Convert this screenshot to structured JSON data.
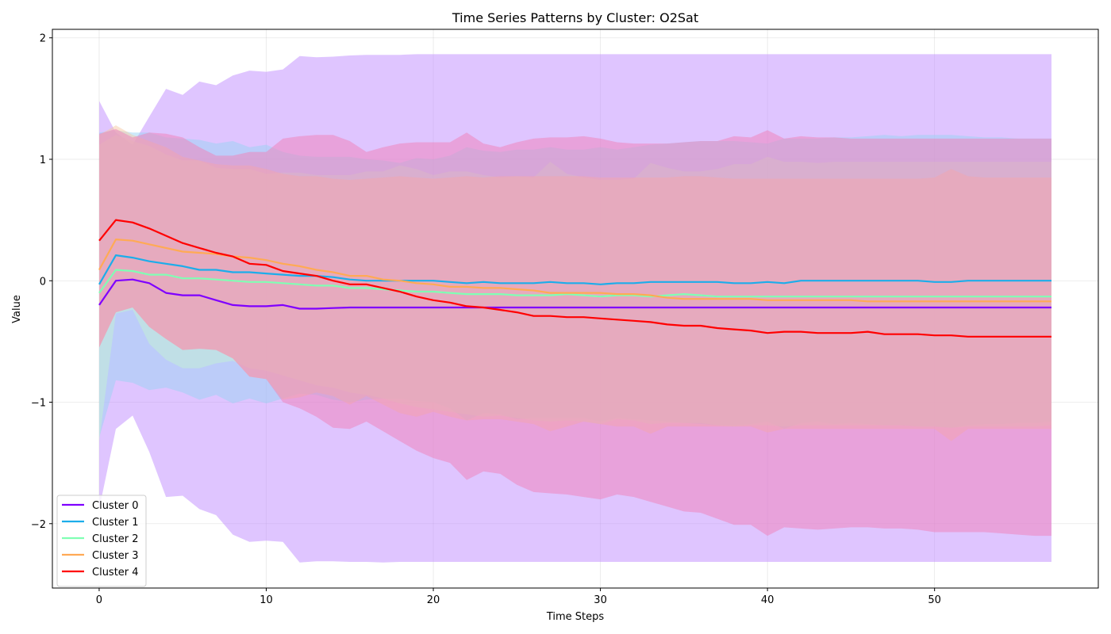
{
  "chart_data": {
    "type": "line",
    "title": "Time Series Patterns by Cluster: O2Sat",
    "xlabel": "Time Steps",
    "ylabel": "Value",
    "xlim": [
      -2.8,
      59.8
    ],
    "ylim": [
      -2.53,
      2.07
    ],
    "xticks": [
      0,
      10,
      20,
      30,
      40,
      50
    ],
    "yticks": [
      -2,
      -1,
      0,
      1,
      2
    ],
    "grid": true,
    "legend_position": "lower-left",
    "x": [
      0,
      1,
      2,
      3,
      4,
      5,
      6,
      7,
      8,
      9,
      10,
      11,
      12,
      13,
      14,
      15,
      16,
      17,
      18,
      19,
      20,
      21,
      22,
      23,
      24,
      25,
      26,
      27,
      28,
      29,
      30,
      31,
      32,
      33,
      34,
      35,
      36,
      37,
      38,
      39,
      40,
      41,
      42,
      43,
      44,
      45,
      46,
      47,
      48,
      49,
      50,
      51,
      52,
      53,
      54,
      55,
      56,
      57
    ],
    "series": [
      {
        "name": "Cluster 0",
        "color": "#7f00ff",
        "fill": "#c08bff",
        "values": [
          -0.2,
          0.0,
          0.01,
          -0.02,
          -0.1,
          -0.12,
          -0.12,
          -0.16,
          -0.2,
          -0.21,
          -0.21,
          -0.2,
          -0.23,
          -0.23,
          -0.225,
          -0.22,
          -0.22,
          -0.22,
          -0.22,
          -0.22,
          -0.22,
          -0.22,
          -0.22,
          -0.22,
          -0.22,
          -0.22,
          -0.22,
          -0.22,
          -0.22,
          -0.22,
          -0.22,
          -0.22,
          -0.22,
          -0.22,
          -0.22,
          -0.22,
          -0.22,
          -0.22,
          -0.22,
          -0.22,
          -0.22,
          -0.22,
          -0.22,
          -0.22,
          -0.22,
          -0.22,
          -0.22,
          -0.22,
          -0.22,
          -0.22,
          -0.22,
          -0.22,
          -0.22,
          -0.22,
          -0.22,
          -0.22,
          -0.22,
          -0.22
        ],
        "upper": [
          1.48,
          1.22,
          1.12,
          1.35,
          1.58,
          1.53,
          1.64,
          1.61,
          1.69,
          1.73,
          1.72,
          1.74,
          1.85,
          1.84,
          1.845,
          1.855,
          1.86,
          1.86,
          1.86,
          1.865,
          1.865,
          1.865,
          1.865,
          1.865,
          1.865,
          1.865,
          1.865,
          1.865,
          1.865,
          1.865,
          1.865,
          1.865,
          1.865,
          1.865,
          1.865,
          1.865,
          1.865,
          1.865,
          1.865,
          1.865,
          1.865,
          1.865,
          1.865,
          1.865,
          1.865,
          1.865,
          1.865,
          1.865,
          1.865,
          1.865,
          1.865,
          1.865,
          1.865,
          1.865,
          1.865,
          1.865,
          1.865,
          1.865
        ],
        "lower": [
          -1.88,
          -1.22,
          -1.11,
          -1.41,
          -1.78,
          -1.77,
          -1.88,
          -1.93,
          -2.09,
          -2.15,
          -2.14,
          -2.15,
          -2.32,
          -2.31,
          -2.31,
          -2.315,
          -2.315,
          -2.32,
          -2.315,
          -2.315,
          -2.315,
          -2.315,
          -2.315,
          -2.315,
          -2.315,
          -2.315,
          -2.315,
          -2.315,
          -2.315,
          -2.315,
          -2.315,
          -2.315,
          -2.315,
          -2.315,
          -2.315,
          -2.315,
          -2.315,
          -2.315,
          -2.315,
          -2.315,
          -2.315,
          -2.315,
          -2.315,
          -2.315,
          -2.315,
          -2.315,
          -2.315,
          -2.315,
          -2.315,
          -2.315,
          -2.315,
          -2.315,
          -2.315,
          -2.315,
          -2.315,
          -2.315,
          -2.315,
          -2.315
        ]
      },
      {
        "name": "Cluster 1",
        "color": "#1cadea",
        "fill": "#9ad3f3",
        "values": [
          -0.03,
          0.21,
          0.19,
          0.16,
          0.14,
          0.12,
          0.09,
          0.09,
          0.07,
          0.07,
          0.06,
          0.05,
          0.04,
          0.04,
          0.03,
          0.01,
          0.0,
          0.0,
          0.0,
          0.0,
          0.0,
          -0.01,
          -0.02,
          -0.01,
          -0.02,
          -0.02,
          -0.02,
          -0.01,
          -0.02,
          -0.02,
          -0.03,
          -0.02,
          -0.02,
          -0.01,
          -0.01,
          -0.01,
          -0.01,
          -0.01,
          -0.02,
          -0.02,
          -0.01,
          -0.02,
          0.0,
          0.0,
          0.0,
          0.0,
          0.0,
          0.0,
          0.0,
          0.0,
          -0.01,
          -0.01,
          0.0,
          0.0,
          0.0,
          0.0,
          0.0,
          0.0
        ],
        "upper": [
          1.22,
          1.24,
          1.22,
          1.22,
          1.18,
          1.17,
          1.16,
          1.13,
          1.15,
          1.1,
          1.12,
          1.06,
          1.03,
          1.02,
          1.02,
          1.02,
          1.0,
          0.99,
          0.97,
          1.01,
          1.0,
          1.03,
          1.1,
          1.07,
          1.06,
          1.08,
          1.08,
          1.1,
          1.08,
          1.08,
          1.1,
          1.08,
          1.1,
          1.12,
          1.13,
          1.14,
          1.15,
          1.15,
          1.15,
          1.14,
          1.13,
          1.17,
          1.17,
          1.17,
          1.18,
          1.18,
          1.19,
          1.2,
          1.19,
          1.2,
          1.2,
          1.2,
          1.19,
          1.18,
          1.18,
          1.17,
          1.17,
          1.17
        ],
        "lower": [
          -1.29,
          -0.82,
          -0.84,
          -0.9,
          -0.88,
          -0.92,
          -0.98,
          -0.94,
          -1.01,
          -0.97,
          -1.01,
          -0.97,
          -0.93,
          -0.94,
          -0.98,
          -1.0,
          -0.98,
          -0.97,
          -0.97,
          -0.99,
          -1.0,
          -1.05,
          -1.15,
          -1.09,
          -1.1,
          -1.14,
          -1.13,
          -1.13,
          -1.13,
          -1.13,
          -1.16,
          -1.13,
          -1.14,
          -1.15,
          -1.16,
          -1.17,
          -1.18,
          -1.19,
          -1.19,
          -1.18,
          -1.16,
          -1.22,
          -1.17,
          -1.16,
          -1.18,
          -1.17,
          -1.18,
          -1.19,
          -1.19,
          -1.2,
          -1.2,
          -1.21,
          -1.19,
          -1.18,
          -1.18,
          -1.17,
          -1.17,
          -1.16
        ]
      },
      {
        "name": "Cluster 2",
        "color": "#80ffb4",
        "fill": "#c4f2d3",
        "values": [
          -0.1,
          0.09,
          0.08,
          0.05,
          0.05,
          0.02,
          0.02,
          0.01,
          0.0,
          -0.01,
          -0.01,
          -0.02,
          -0.03,
          -0.04,
          -0.04,
          -0.06,
          -0.06,
          -0.07,
          -0.08,
          -0.09,
          -0.09,
          -0.1,
          -0.11,
          -0.11,
          -0.11,
          -0.12,
          -0.12,
          -0.12,
          -0.11,
          -0.12,
          -0.13,
          -0.12,
          -0.12,
          -0.13,
          -0.12,
          -0.11,
          -0.12,
          -0.13,
          -0.13,
          -0.13,
          -0.13,
          -0.13,
          -0.13,
          -0.13,
          -0.13,
          -0.13,
          -0.13,
          -0.13,
          -0.13,
          -0.13,
          -0.13,
          -0.13,
          -0.13,
          -0.13,
          -0.13,
          -0.13,
          -0.13,
          -0.13
        ],
        "upper": [
          1.12,
          1.2,
          1.15,
          1.11,
          1.04,
          0.99,
          0.99,
          0.93,
          0.92,
          0.92,
          0.88,
          0.89,
          0.89,
          0.87,
          0.87,
          0.87,
          0.9,
          0.9,
          0.95,
          0.92,
          0.87,
          0.9,
          0.9,
          0.87,
          0.85,
          0.86,
          0.85,
          0.98,
          0.88,
          0.85,
          0.83,
          0.83,
          0.84,
          0.97,
          0.93,
          0.9,
          0.9,
          0.92,
          0.96,
          0.96,
          1.02,
          0.98,
          0.98,
          0.97,
          0.98,
          0.98,
          0.98,
          0.98,
          0.98,
          0.98,
          0.98,
          0.98,
          0.98,
          0.98,
          0.98,
          0.98,
          0.98,
          0.98
        ],
        "lower": [
          -1.32,
          -0.27,
          -0.24,
          -0.52,
          -0.65,
          -0.72,
          -0.72,
          -0.68,
          -0.66,
          -0.72,
          -0.74,
          -0.78,
          -0.82,
          -0.86,
          -0.88,
          -0.92,
          -0.94,
          -0.97,
          -1.01,
          -1.04,
          -1.06,
          -1.08,
          -1.1,
          -1.12,
          -1.11,
          -1.13,
          -1.15,
          -1.16,
          -1.15,
          -1.16,
          -1.18,
          -1.14,
          -1.15,
          -1.18,
          -1.17,
          -1.17,
          -1.17,
          -1.19,
          -1.2,
          -1.19,
          -1.19,
          -1.2,
          -1.19,
          -1.19,
          -1.19,
          -1.19,
          -1.19,
          -1.19,
          -1.19,
          -1.2,
          -1.2,
          -1.21,
          -1.2,
          -1.2,
          -1.2,
          -1.2,
          -1.2,
          -1.19
        ]
      },
      {
        "name": "Cluster 3",
        "color": "#ffaa55",
        "fill": "#f6c9a4",
        "values": [
          0.09,
          0.34,
          0.33,
          0.3,
          0.27,
          0.24,
          0.23,
          0.22,
          0.2,
          0.19,
          0.17,
          0.14,
          0.12,
          0.09,
          0.07,
          0.04,
          0.04,
          0.01,
          0.0,
          -0.02,
          -0.03,
          -0.05,
          -0.05,
          -0.06,
          -0.06,
          -0.07,
          -0.08,
          -0.1,
          -0.1,
          -0.1,
          -0.1,
          -0.11,
          -0.11,
          -0.12,
          -0.14,
          -0.15,
          -0.15,
          -0.15,
          -0.15,
          -0.15,
          -0.16,
          -0.16,
          -0.16,
          -0.16,
          -0.16,
          -0.16,
          -0.17,
          -0.17,
          -0.17,
          -0.17,
          -0.17,
          -0.17,
          -0.17,
          -0.17,
          -0.17,
          -0.17,
          -0.17,
          -0.17
        ],
        "upper": [
          1.2,
          1.28,
          1.2,
          1.15,
          1.1,
          1.02,
          0.99,
          0.96,
          0.95,
          0.95,
          0.92,
          0.88,
          0.86,
          0.86,
          0.84,
          0.83,
          0.84,
          0.85,
          0.86,
          0.85,
          0.84,
          0.85,
          0.86,
          0.85,
          0.86,
          0.86,
          0.86,
          0.86,
          0.86,
          0.86,
          0.85,
          0.85,
          0.85,
          0.85,
          0.85,
          0.86,
          0.86,
          0.85,
          0.84,
          0.84,
          0.84,
          0.84,
          0.84,
          0.84,
          0.84,
          0.84,
          0.84,
          0.84,
          0.84,
          0.84,
          0.85,
          0.92,
          0.86,
          0.85,
          0.85,
          0.85,
          0.85,
          0.85
        ],
        "lower": [
          -0.55,
          -0.26,
          -0.22,
          -0.38,
          -0.48,
          -0.57,
          -0.56,
          -0.57,
          -0.64,
          -0.79,
          -0.81,
          -0.98,
          -0.96,
          -0.92,
          -0.95,
          -1.02,
          -0.95,
          -1.02,
          -1.09,
          -1.12,
          -1.08,
          -1.12,
          -1.15,
          -1.14,
          -1.14,
          -1.16,
          -1.18,
          -1.24,
          -1.2,
          -1.16,
          -1.18,
          -1.2,
          -1.2,
          -1.26,
          -1.2,
          -1.2,
          -1.2,
          -1.2,
          -1.2,
          -1.2,
          -1.25,
          -1.22,
          -1.22,
          -1.22,
          -1.22,
          -1.22,
          -1.22,
          -1.22,
          -1.22,
          -1.22,
          -1.22,
          -1.32,
          -1.22,
          -1.22,
          -1.22,
          -1.22,
          -1.22,
          -1.22
        ]
      },
      {
        "name": "Cluster 4",
        "color": "#ff0000",
        "fill": "#f17fb7",
        "values": [
          0.33,
          0.5,
          0.48,
          0.43,
          0.37,
          0.31,
          0.27,
          0.23,
          0.2,
          0.14,
          0.13,
          0.08,
          0.06,
          0.04,
          0.0,
          -0.03,
          -0.03,
          -0.06,
          -0.09,
          -0.13,
          -0.16,
          -0.18,
          -0.21,
          -0.22,
          -0.24,
          -0.26,
          -0.29,
          -0.29,
          -0.3,
          -0.3,
          -0.31,
          -0.32,
          -0.33,
          -0.34,
          -0.36,
          -0.37,
          -0.37,
          -0.39,
          -0.4,
          -0.41,
          -0.43,
          -0.42,
          -0.42,
          -0.43,
          -0.43,
          -0.43,
          -0.42,
          -0.44,
          -0.44,
          -0.44,
          -0.45,
          -0.45,
          -0.46,
          -0.46,
          -0.46,
          -0.46,
          -0.46,
          -0.46
        ],
        "upper": [
          1.21,
          1.25,
          1.18,
          1.22,
          1.21,
          1.18,
          1.1,
          1.03,
          1.03,
          1.06,
          1.06,
          1.17,
          1.19,
          1.2,
          1.2,
          1.15,
          1.06,
          1.1,
          1.13,
          1.14,
          1.14,
          1.14,
          1.22,
          1.13,
          1.1,
          1.14,
          1.17,
          1.18,
          1.18,
          1.19,
          1.17,
          1.14,
          1.13,
          1.13,
          1.13,
          1.14,
          1.15,
          1.15,
          1.19,
          1.18,
          1.24,
          1.17,
          1.19,
          1.18,
          1.18,
          1.17,
          1.17,
          1.17,
          1.17,
          1.17,
          1.17,
          1.17,
          1.17,
          1.17,
          1.17,
          1.17,
          1.17,
          1.17
        ],
        "lower": [
          -0.55,
          -0.26,
          -0.22,
          -0.38,
          -0.48,
          -0.57,
          -0.56,
          -0.57,
          -0.64,
          -0.79,
          -0.81,
          -1.0,
          -1.05,
          -1.12,
          -1.21,
          -1.22,
          -1.16,
          -1.24,
          -1.32,
          -1.4,
          -1.46,
          -1.5,
          -1.64,
          -1.57,
          -1.59,
          -1.68,
          -1.74,
          -1.75,
          -1.76,
          -1.78,
          -1.8,
          -1.76,
          -1.78,
          -1.82,
          -1.86,
          -1.9,
          -1.91,
          -1.96,
          -2.01,
          -2.01,
          -2.1,
          -2.03,
          -2.04,
          -2.05,
          -2.04,
          -2.03,
          -2.03,
          -2.04,
          -2.04,
          -2.05,
          -2.07,
          -2.07,
          -2.07,
          -2.07,
          -2.08,
          -2.09,
          -2.1,
          -2.1
        ]
      }
    ]
  }
}
